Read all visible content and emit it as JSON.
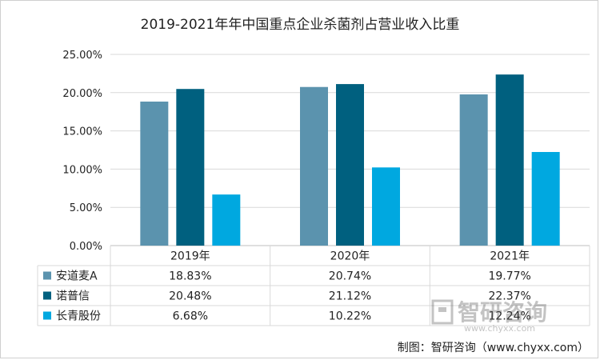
{
  "chart_data": {
    "type": "bar",
    "title": "2019-2021年年中国重点企业杀菌剂占营业收入比重",
    "categories": [
      "2019年",
      "2020年",
      "2021年"
    ],
    "series": [
      {
        "name": "安道麦A",
        "values": [
          18.83,
          20.74,
          19.77
        ],
        "labels": [
          "18.83%",
          "20.74%",
          "19.77%"
        ],
        "color": "#5b93ae"
      },
      {
        "name": "诺普信",
        "values": [
          20.48,
          21.12,
          22.37
        ],
        "labels": [
          "20.48%",
          "21.12%",
          "22.37%"
        ],
        "color": "#00607f"
      },
      {
        "name": "长青股份",
        "values": [
          6.68,
          10.22,
          12.24
        ],
        "labels": [
          "6.68%",
          "10.22%",
          "12.24%"
        ],
        "color": "#00a8e0"
      }
    ],
    "ylim": [
      0,
      25
    ],
    "yticks": [
      "0.00%",
      "5.00%",
      "10.00%",
      "15.00%",
      "20.00%",
      "25.00%"
    ],
    "grid": true,
    "legend": "data-table"
  },
  "watermark": "智研咨询 www.chyxx.com",
  "source": "制图：智研咨询（www.chyxx.com）"
}
